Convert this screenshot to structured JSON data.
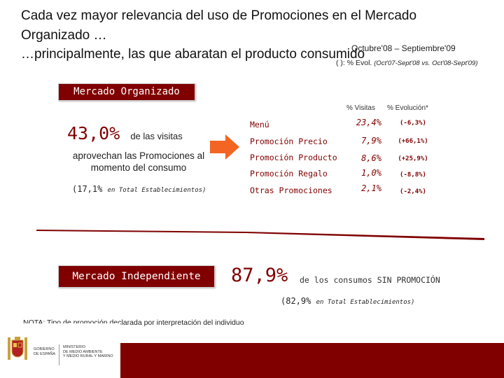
{
  "header": {
    "title_line1": "Cada vez mayor relevancia del uso de Promociones en el Mercado",
    "title_line2": "Organizado …",
    "title_line3": "…principalmente, las que abaratan el producto consumido",
    "period": "Octubre'08 – Septiembre'09",
    "legend_prefix": "( ): % Evol.",
    "legend_detail": "(Oct'07-Sept'08 vs. Oct'08-Sept'09)"
  },
  "organizado": {
    "box_label": "Mercado Organizado",
    "big_value": "43,0%",
    "big_suffix": "de las visitas",
    "description": "aprovechan las Promociones al momento del consumo",
    "total_value": "(17,1%",
    "total_label": "en Total Establecimientos)",
    "col_visitas": "% Visitas",
    "col_evolucion": "% Evolución*",
    "rows": [
      {
        "label": "Menú",
        "visitas": "23,4%",
        "evol": "(-6,3%)"
      },
      {
        "label": "Promoción Precio",
        "visitas": "7,9%",
        "evol": "(+66,1%)"
      },
      {
        "label": "Promoción Producto",
        "visitas": "8,6%",
        "evol": "(+25,9%)"
      },
      {
        "label": "Promoción Regalo",
        "visitas": "1,0%",
        "evol": "(-8,8%)"
      },
      {
        "label": "Otras Promociones",
        "visitas": "2,1%",
        "evol": "(-2,4%)"
      }
    ]
  },
  "independiente": {
    "box_label": "Mercado Independiente",
    "big_value": "87,9%",
    "big_desc": "de los consumos SIN PROMOCIÓN",
    "total_value": "(82,9%",
    "total_label": "en Total Establecimientos)"
  },
  "note": {
    "prefix": "NOTA:",
    "text": "Tipo de promoción declarada por interpretación del individuo"
  },
  "footer": {
    "ministry_left": [
      "GOBIERNO",
      "DE ESPAÑA"
    ],
    "ministry_right": [
      "MINISTERIO",
      "DE MEDIO AMBIENTE",
      "Y MEDIO RURAL Y MARINO"
    ],
    "accent_color": "#800000",
    "arrow_color": "#f26522"
  }
}
